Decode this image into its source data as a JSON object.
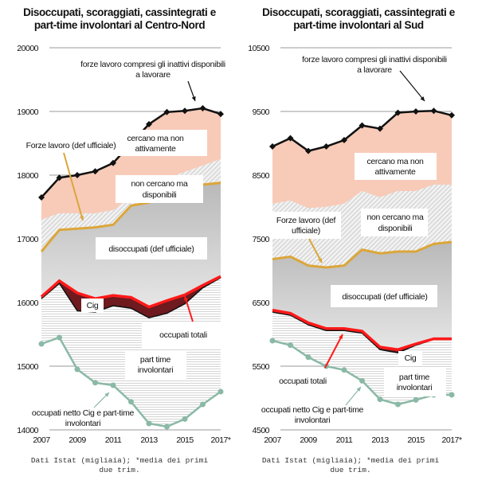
{
  "charts": [
    {
      "title_line1": "Disoccupati, scoraggiati, cassintegrati e",
      "title_line2": "part-time involontari al Centro-Nord",
      "source_line1": "Dati Istat (migliaia); *media dei primi",
      "source_line2": "due trim.",
      "labels": {
        "forze_inattivi_1": "forze lavoro compresi gli inattivi disponibili",
        "forze_inattivi_2": "a lavorare",
        "cercano_1": "cercano ma non",
        "cercano_2": "attivamente",
        "forze_uff": "Forze lavoro (def ufficiale)",
        "non_cercano_1": "non cercano ma",
        "non_cercano_2": "disponibili",
        "disoccupati": "disoccupati (def ufficiale)",
        "cig": "Cig",
        "occupati_totali": "occupati totali",
        "part_time_1": "part time",
        "part_time_2": "involontari",
        "netto_1": "occupati netto Cig e part-time",
        "netto_2": "involontari"
      }
    },
    {
      "title_line1": "Disoccupati, scoraggiati, cassintegrati e",
      "title_line2": "part-time involontari al Sud",
      "source_line1": "Dati Istat (migliaia); *media dei primi",
      "source_line2": "due trim.",
      "labels": {
        "forze_inattivi_1": "forze lavoro compresi gli inattivi disponibili",
        "forze_inattivi_2": "a lavorare",
        "cercano_1": "cercano ma non",
        "cercano_2": "attivamente",
        "forze_uff_1": "Forze lavoro (def",
        "forze_uff_2": "ufficiale)",
        "non_cercano_1": "non cercano ma",
        "non_cercano_2": "disponibili",
        "disoccupati": "disoccupati (def ufficiale)",
        "cig": "Cig",
        "occupati_totali": "occupati totali",
        "part_time_1": "part time",
        "part_time_2": "involontari",
        "netto_1": "occupati netto Cig e part-time",
        "netto_2": "involontari"
      }
    }
  ],
  "chart_data": [
    {
      "type": "area",
      "title": "Disoccupati, scoraggiati, cassintegrati e part-time involontari al Centro-Nord",
      "xlabel": "",
      "ylabel": "",
      "x": [
        "2007",
        "2008",
        "2009",
        "2010",
        "2011",
        "2012",
        "2013",
        "2014",
        "2015",
        "2016",
        "2017*"
      ],
      "x_tick_labels": [
        "2007",
        "2009",
        "2011",
        "2013",
        "2015",
        "2017*"
      ],
      "ylim": [
        14000,
        20000
      ],
      "y_ticks": [
        14000,
        15000,
        16000,
        17000,
        18000,
        19000,
        20000
      ],
      "series": [
        {
          "name": "forze lavoro compresi gli inattivi disponibili a lavorare",
          "values": [
            17650,
            17960,
            18000,
            18060,
            18190,
            18500,
            18800,
            18990,
            19010,
            19050,
            18960
          ]
        },
        {
          "name": "cercano ma non attivamente (limite inferiore)",
          "values": [
            17300,
            17400,
            17400,
            17400,
            17450,
            17650,
            17850,
            17950,
            18050,
            18150,
            18250
          ]
        },
        {
          "name": "Forze lavoro (def ufficiale)",
          "values": [
            16800,
            17140,
            17160,
            17180,
            17220,
            17520,
            17570,
            17700,
            17750,
            17850,
            17880
          ]
        },
        {
          "name": "occupati totali",
          "values": [
            16090,
            16340,
            16150,
            16060,
            16110,
            16080,
            15930,
            16030,
            16120,
            16270,
            16410
          ]
        },
        {
          "name": "occupati netto Cig",
          "values": [
            16060,
            16300,
            15870,
            15850,
            15950,
            15910,
            15760,
            15830,
            15980,
            16230,
            16390
          ]
        },
        {
          "name": "occupati netto Cig e part-time involontari",
          "values": [
            15350,
            15450,
            14950,
            14740,
            14700,
            14440,
            14100,
            14050,
            14170,
            14400,
            14600
          ]
        }
      ]
    },
    {
      "type": "area",
      "title": "Disoccupati, scoraggiati, cassintegrati e part-time involontari al Sud",
      "xlabel": "",
      "ylabel": "",
      "x": [
        "2007",
        "2008",
        "2009",
        "2010",
        "2011",
        "2012",
        "2013",
        "2014",
        "2015",
        "2016",
        "2017*"
      ],
      "x_tick_labels": [
        "2007",
        "2009",
        "2011",
        "2013",
        "2015",
        "2017*"
      ],
      "ylim": [
        4500,
        10500
      ],
      "y_ticks": [
        4500,
        5500,
        6500,
        7500,
        8500,
        9500,
        10500
      ],
      "series": [
        {
          "name": "forze lavoro compresi gli inattivi disponibili a lavorare",
          "values": [
            8950,
            9080,
            8880,
            8950,
            9050,
            9280,
            9230,
            9480,
            9500,
            9510,
            9440
          ]
        },
        {
          "name": "cercano ma non attivamente (limite inferiore)",
          "values": [
            8050,
            8100,
            7980,
            8000,
            8050,
            8250,
            8150,
            8250,
            8250,
            8350,
            8350
          ]
        },
        {
          "name": "Forze lavoro (def ufficiale)",
          "values": [
            7180,
            7220,
            7080,
            7050,
            7080,
            7330,
            7270,
            7300,
            7300,
            7420,
            7450
          ]
        },
        {
          "name": "occupati totali",
          "values": [
            6380,
            6330,
            6180,
            6090,
            6090,
            6050,
            5800,
            5760,
            5850,
            5930,
            5930
          ]
        },
        {
          "name": "occupati netto Cig",
          "values": [
            6350,
            6300,
            6150,
            6060,
            6060,
            6020,
            5760,
            5710,
            5830,
            5920,
            5920
          ]
        },
        {
          "name": "occupati netto Cig e part-time involontari",
          "values": [
            5900,
            5830,
            5640,
            5500,
            5440,
            5270,
            4980,
            4900,
            4970,
            5050,
            5050
          ]
        }
      ]
    }
  ],
  "colors": {
    "pink": "#f7cbb8",
    "gold": "#dba63a",
    "red": "#ff1a1a",
    "cig": "#6e1a1e",
    "green": "#8ab9a6",
    "black": "#111111",
    "grey": "#c8c8c8"
  }
}
